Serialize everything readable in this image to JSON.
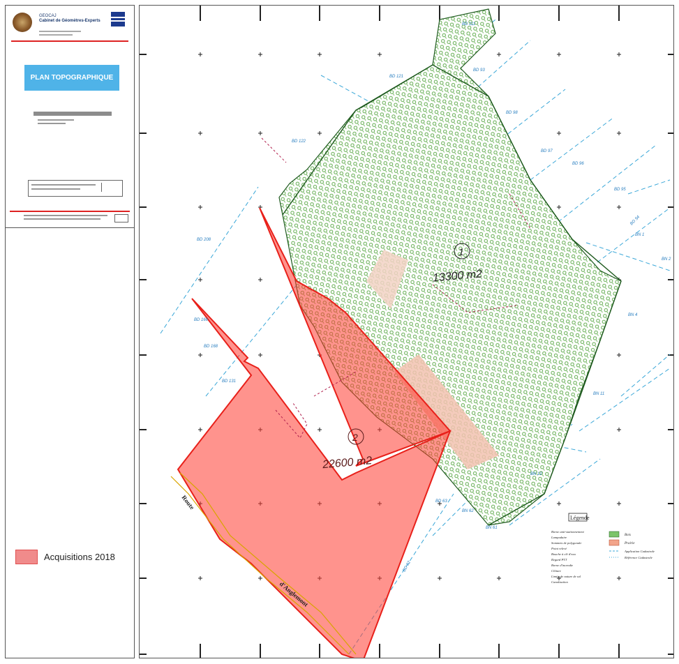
{
  "cartouche": {
    "firm_line1": "GEOCAJ",
    "firm_line2": "Cabinet de Géomètres-Experts",
    "plan_title": "PLAN TOPOGRAPHIQUE"
  },
  "legend_left": {
    "label": "Acquisitions 2018",
    "color": "#f08b8b"
  },
  "parcels": [
    {
      "number": "1",
      "area": "13300  m2",
      "color": "#7cc46a"
    },
    {
      "number": "2",
      "area": "22600  m2",
      "color": "#ff3b2f"
    }
  ],
  "labels": {
    "road1": "Route",
    "road2": "d'Anglemont"
  },
  "cadastre": [
    "BD 111",
    "BD 121",
    "BD 93",
    "BD 98",
    "BD 97",
    "BD 96",
    "BD 95",
    "BD 54",
    "BN 1",
    "BN 2",
    "BN 4",
    "BD 122",
    "BD 208",
    "BD 166",
    "BD 168",
    "BD 131",
    "BN 11",
    "BN 12",
    "BN 61",
    "BN 62",
    "BD 62",
    "BD 63"
  ],
  "map_legend": {
    "title": "Légende",
    "items": [
      "Borne anti-stationnement",
      "Lampadaire",
      "Sommets de polygonale",
      "Point relevé",
      "Bouche à clé d'eau",
      "Regard PTT",
      "Borne d'incendie",
      "Clôture",
      "Limite de nature de sol",
      "Canalisation"
    ],
    "swatches": [
      {
        "label": "Bois",
        "color": "#7cc46a"
      },
      {
        "label": "Prairie",
        "color": "#f2a48a"
      }
    ],
    "line_items": [
      "Application Cadastrale",
      "Référence Cadastrale"
    ]
  }
}
